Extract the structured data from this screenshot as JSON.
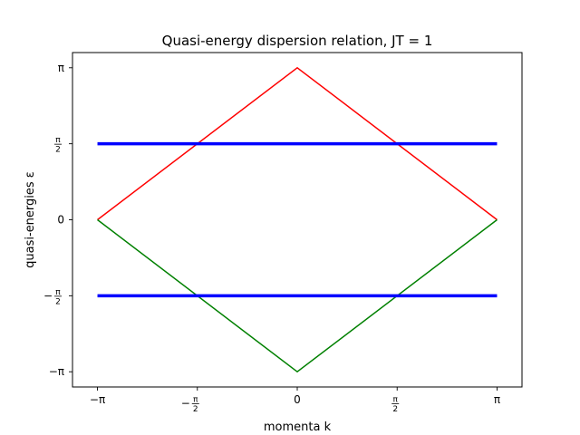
{
  "chart_data": {
    "type": "line",
    "title": "Quasi-energy dispersion relation, JT = 1",
    "xlabel": "momenta k",
    "ylabel": "quasi-energies ε",
    "xlim": [
      -3.534,
      3.534
    ],
    "ylim": [
      -3.456,
      3.456
    ],
    "x_ticks": [
      {
        "value": -3.14159,
        "label": "−π",
        "style": "normal"
      },
      {
        "value": -1.5708,
        "label": "−π/2",
        "style": "frac",
        "sign": "−",
        "num": "π",
        "den": "2"
      },
      {
        "value": 0,
        "label": "0",
        "style": "normal"
      },
      {
        "value": 1.5708,
        "label": "π/2",
        "style": "frac",
        "sign": "",
        "num": "π",
        "den": "2"
      },
      {
        "value": 3.14159,
        "label": "π",
        "style": "normal"
      }
    ],
    "y_ticks": [
      {
        "value": 3.14159,
        "label": "π",
        "style": "normal"
      },
      {
        "value": 1.5708,
        "label": "π/2",
        "style": "frac",
        "sign": "",
        "num": "π",
        "den": "2"
      },
      {
        "value": 0,
        "label": "0",
        "style": "normal"
      },
      {
        "value": -1.5708,
        "label": "−π/2",
        "style": "frac",
        "sign": "−",
        "num": "π",
        "den": "2"
      },
      {
        "value": -3.14159,
        "label": "−π",
        "style": "normal"
      }
    ],
    "grid": false,
    "legend": "none",
    "series": [
      {
        "color": "#ff0000",
        "line_width": 1.5,
        "x": [
          -3.14159,
          0,
          3.14159
        ],
        "y": [
          0,
          3.14159,
          0
        ]
      },
      {
        "color": "#008000",
        "line_width": 1.5,
        "x": [
          -3.14159,
          0,
          3.14159
        ],
        "y": [
          0,
          -3.14159,
          0
        ]
      },
      {
        "color": "#0000ff",
        "line_width": 3.5,
        "x": [
          -3.14159,
          3.14159
        ],
        "y": [
          1.5708,
          1.5708
        ]
      },
      {
        "color": "#0000ff",
        "line_width": 3.5,
        "x": [
          -3.14159,
          3.14159
        ],
        "y": [
          -1.5708,
          -1.5708
        ]
      }
    ]
  }
}
